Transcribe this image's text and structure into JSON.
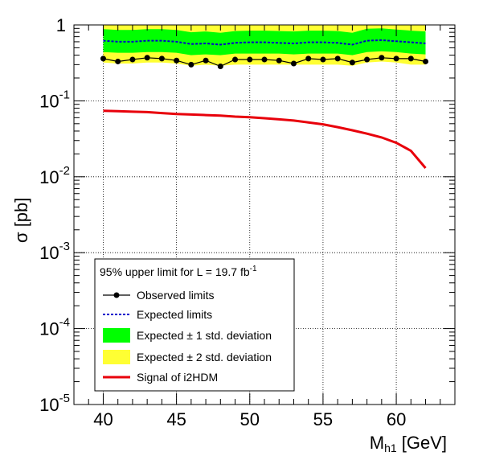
{
  "chart_data": {
    "type": "line",
    "xlabel": "M",
    "xlabel_sub": "h1",
    "xlabel_unit": " [GeV]",
    "ylabel": "σ [pb]",
    "xlim": [
      38,
      64
    ],
    "ylim": [
      1e-05,
      1
    ],
    "ylog": true,
    "grid": true,
    "x_ticks": [
      40,
      45,
      50,
      55,
      60
    ],
    "y_ticks": [
      {
        "value": 1,
        "base": "1",
        "exp": ""
      },
      {
        "value": 0.1,
        "base": "10",
        "exp": "-1"
      },
      {
        "value": 0.01,
        "base": "10",
        "exp": "-2"
      },
      {
        "value": 0.001,
        "base": "10",
        "exp": "-3"
      },
      {
        "value": 0.0001,
        "base": "10",
        "exp": "-4"
      },
      {
        "value": 1e-05,
        "base": "10",
        "exp": "-5"
      }
    ],
    "legend": {
      "placement": "bottom-left",
      "header": "95% upper limit for L = 19.7 fb",
      "header_sup": "-1",
      "entries": [
        {
          "key": "observed",
          "label": "Observed limits"
        },
        {
          "key": "expected",
          "label": "Expected limits"
        },
        {
          "key": "band1",
          "label": "Expected ± 1 std. deviation"
        },
        {
          "key": "band2",
          "label": "Expected ± 2 std. deviation"
        },
        {
          "key": "signal",
          "label": "Signal of i2HDM"
        }
      ]
    },
    "x": [
      40,
      41,
      42,
      43,
      44,
      45,
      46,
      47,
      48,
      49,
      50,
      51,
      52,
      53,
      54,
      55,
      56,
      57,
      58,
      59,
      60,
      61,
      62
    ],
    "observed": [
      0.36,
      0.33,
      0.35,
      0.37,
      0.36,
      0.34,
      0.3,
      0.34,
      0.285,
      0.35,
      0.35,
      0.35,
      0.34,
      0.31,
      0.36,
      0.35,
      0.36,
      0.32,
      0.35,
      0.37,
      0.36,
      0.36,
      0.33
    ],
    "expected": [
      0.62,
      0.6,
      0.6,
      0.62,
      0.62,
      0.6,
      0.56,
      0.57,
      0.55,
      0.58,
      0.59,
      0.59,
      0.58,
      0.57,
      0.59,
      0.59,
      0.58,
      0.55,
      0.62,
      0.63,
      0.61,
      0.59,
      0.57
    ],
    "band1_low": [
      0.44,
      0.43,
      0.43,
      0.44,
      0.44,
      0.43,
      0.4,
      0.41,
      0.4,
      0.42,
      0.42,
      0.42,
      0.42,
      0.41,
      0.42,
      0.42,
      0.42,
      0.4,
      0.44,
      0.45,
      0.44,
      0.42,
      0.41
    ],
    "band1_high": [
      0.88,
      0.86,
      0.86,
      0.88,
      0.88,
      0.86,
      0.8,
      0.82,
      0.79,
      0.83,
      0.84,
      0.84,
      0.83,
      0.82,
      0.84,
      0.84,
      0.83,
      0.79,
      0.89,
      0.9,
      0.87,
      0.84,
      0.82
    ],
    "band2_low": [
      0.32,
      0.31,
      0.31,
      0.32,
      0.32,
      0.31,
      0.29,
      0.3,
      0.29,
      0.3,
      0.3,
      0.3,
      0.3,
      0.3,
      0.3,
      0.3,
      0.3,
      0.29,
      0.32,
      0.33,
      0.32,
      0.3,
      0.3
    ],
    "band2_high": [
      1.0,
      1.0,
      1.0,
      1.0,
      1.0,
      1.0,
      1.0,
      1.0,
      1.0,
      1.0,
      1.0,
      1.0,
      1.0,
      1.0,
      1.0,
      1.0,
      1.0,
      1.0,
      1.0,
      1.0,
      1.0,
      1.0,
      1.0
    ],
    "signal": {
      "x": [
        40,
        41,
        42,
        43,
        44,
        45,
        46,
        47,
        48,
        49,
        50,
        51,
        52,
        53,
        54,
        55,
        56,
        57,
        58,
        59,
        60,
        61,
        62
      ],
      "y": [
        0.074,
        0.073,
        0.072,
        0.071,
        0.069,
        0.067,
        0.066,
        0.065,
        0.064,
        0.062,
        0.061,
        0.059,
        0.057,
        0.055,
        0.052,
        0.049,
        0.045,
        0.041,
        0.037,
        0.033,
        0.028,
        0.022,
        0.013
      ]
    },
    "colors": {
      "band1": "#00ff00",
      "band2": "#ffff33",
      "expected": "#0000cc",
      "observed": "#000000",
      "signal": "#e8000b"
    }
  }
}
